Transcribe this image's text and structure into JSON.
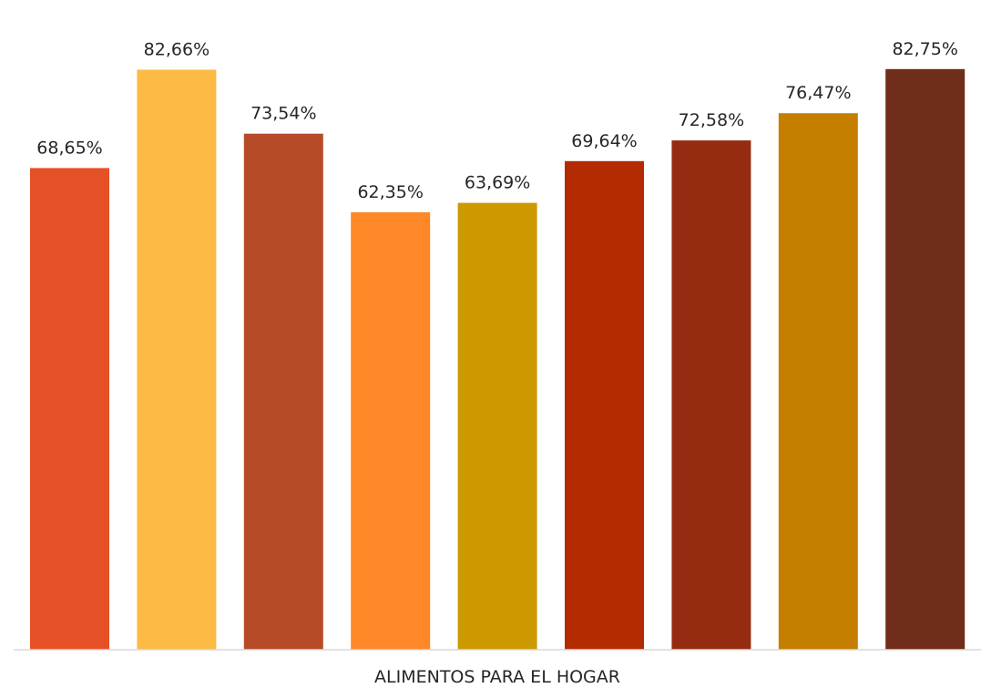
{
  "chart_data": {
    "type": "bar",
    "categories": [
      "ALIMENTOS PARA EL HOGAR"
    ],
    "series": [
      {
        "values": [
          68.65
        ],
        "label": "68,65%",
        "color": "#E65026"
      },
      {
        "values": [
          82.66
        ],
        "label": "82,66%",
        "color": "#FDBB46"
      },
      {
        "values": [
          73.54
        ],
        "label": "73,54%",
        "color": "#B74B27"
      },
      {
        "values": [
          62.35
        ],
        "label": "62,35%",
        "color": "#FE8728"
      },
      {
        "values": [
          63.69
        ],
        "label": "63,69%",
        "color": "#CC9900"
      },
      {
        "values": [
          69.64
        ],
        "label": "69,64%",
        "color": "#B32B00"
      },
      {
        "values": [
          72.58
        ],
        "label": "72,58%",
        "color": "#952C11"
      },
      {
        "values": [
          76.47
        ],
        "label": "76,47%",
        "color": "#C57E00"
      },
      {
        "values": [
          82.75
        ],
        "label": "82,75%",
        "color": "#6F2D1A"
      }
    ],
    "ylim": [
      0,
      100
    ],
    "grid": false,
    "legend": "none"
  }
}
